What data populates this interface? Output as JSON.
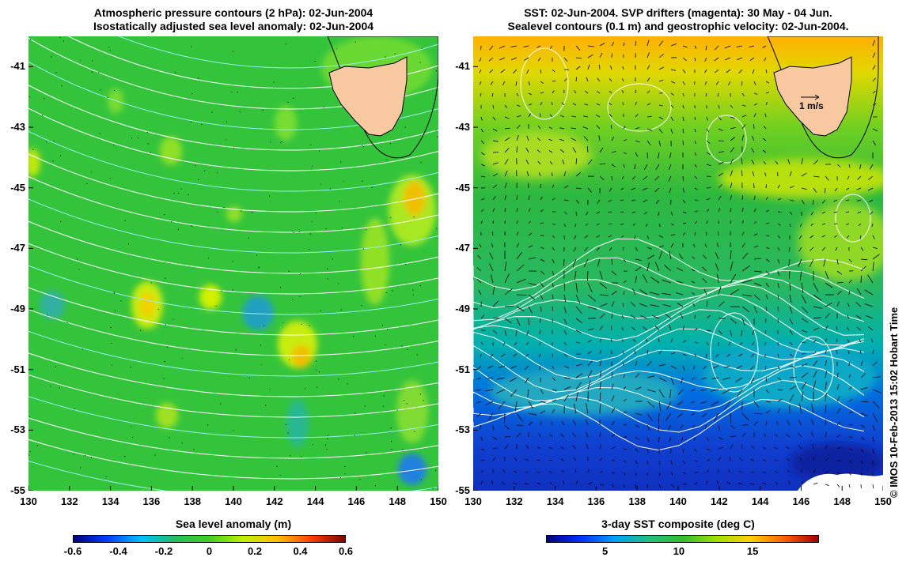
{
  "left_panel": {
    "title_line1": "Atmospheric pressure contours (2 hPa): 02-Jun-2004",
    "title_line2": "Isostatically adjusted sea level anomaly: 02-Jun-2004",
    "colorbar_title": "Sea level anomaly (m)",
    "colorbar_ticks": [
      "-0.6",
      "-0.4",
      "-0.2",
      "0",
      "0.2",
      "0.4",
      "0.6"
    ],
    "colorbar_gradient": [
      "#00007f",
      "#0040ff",
      "#00c0ff",
      "#20c060",
      "#40d020",
      "#c0f000",
      "#ffc000",
      "#ff4000",
      "#7f0000"
    ]
  },
  "right_panel": {
    "title_line1": "SST: 02-Jun-2004. SVP drifters (magenta): 30 May - 04 Jun.",
    "title_line2": "Sealevel contours (0.1 m) and geostrophic velocity: 02-Jun-2004.",
    "colorbar_title": "3-day SST composite (deg C)",
    "colorbar_ticks": [
      "5",
      "10",
      "15"
    ],
    "colorbar_gradient": [
      "#00007f",
      "#0030ff",
      "#00a0ff",
      "#20c080",
      "#30c030",
      "#a0e000",
      "#ffd000",
      "#ff6000",
      "#a00000"
    ],
    "scale_label": "1 m/s"
  },
  "axes": {
    "y_ticks": [
      "-41",
      "-43",
      "-45",
      "-47",
      "-49",
      "-51",
      "-53",
      "-55"
    ],
    "x_ticks": [
      "130",
      "132",
      "134",
      "136",
      "138",
      "140",
      "142",
      "144",
      "146",
      "148",
      "150"
    ]
  },
  "credit": "© IMOS 10-Feb-2013 15:02 Hobart Time",
  "colors": {
    "land": "#f8c8a0",
    "sla_base": "#34c43c",
    "contour": "#ffffff"
  }
}
